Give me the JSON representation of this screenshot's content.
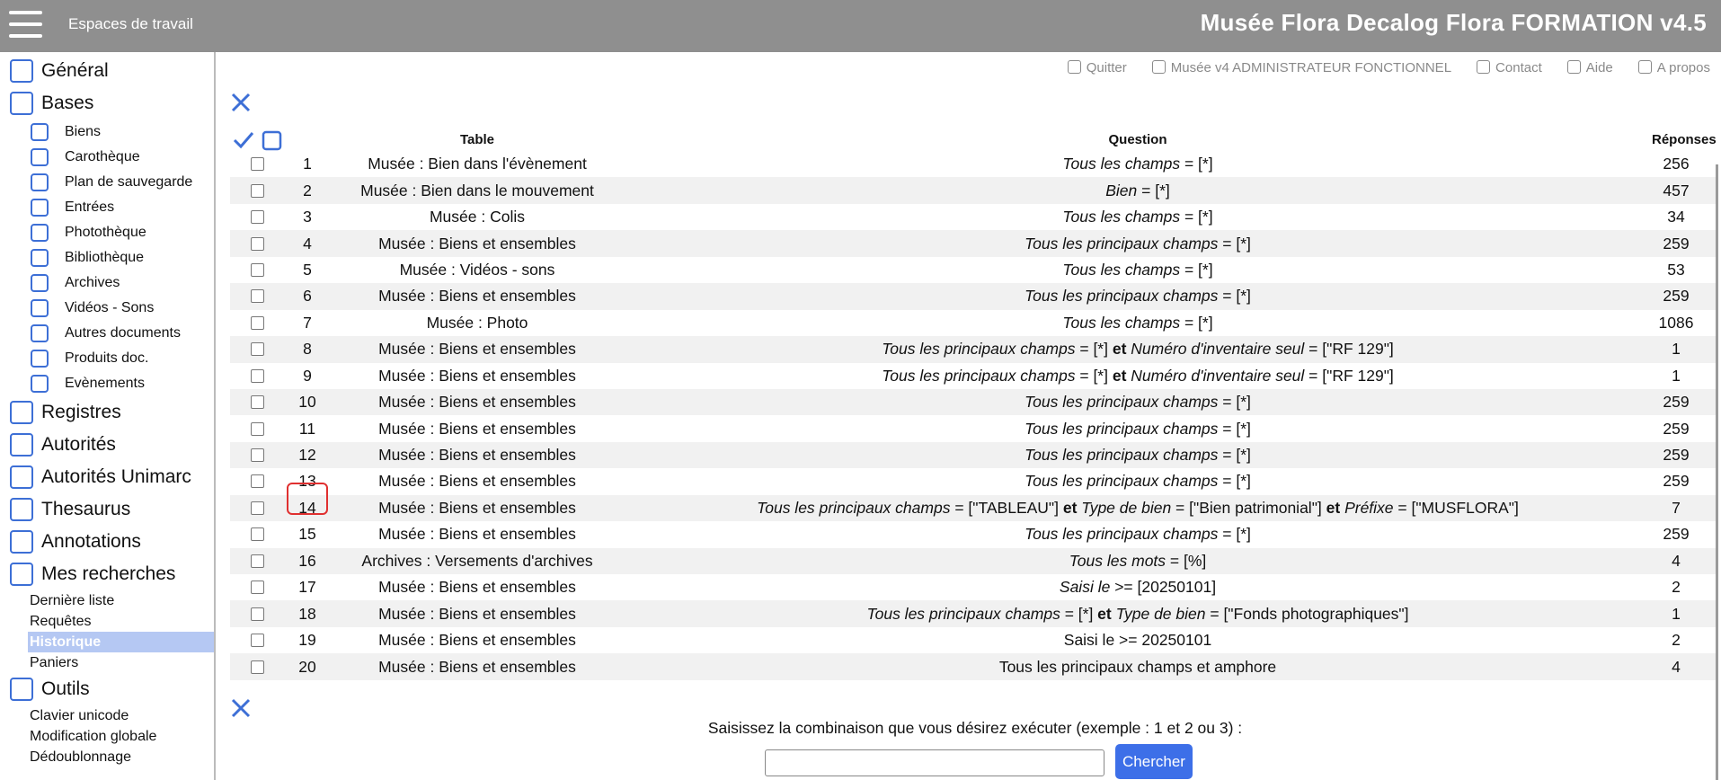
{
  "header": {
    "workspaces": "Espaces de travail",
    "title": "Musée Flora Decalog Flora FORMATION v4.5"
  },
  "sidebar": [
    {
      "label": "Général"
    },
    {
      "label": "Bases",
      "items": [
        {
          "label": "Biens"
        },
        {
          "label": "Carothèque"
        },
        {
          "label": "Plan de sauvegarde"
        },
        {
          "label": "Entrées"
        },
        {
          "label": "Photothèque"
        },
        {
          "label": "Bibliothèque"
        },
        {
          "label": "Archives"
        },
        {
          "label": "Vidéos - Sons"
        },
        {
          "label": "Autres documents"
        },
        {
          "label": "Produits doc."
        },
        {
          "label": "Evènements"
        }
      ]
    },
    {
      "label": "Registres"
    },
    {
      "label": "Autorités"
    },
    {
      "label": "Autorités Unimarc"
    },
    {
      "label": "Thesaurus"
    },
    {
      "label": "Annotations"
    },
    {
      "label": "Mes recherches",
      "items": [
        {
          "label": "Dernière liste"
        },
        {
          "label": "Requêtes"
        },
        {
          "label": "Historique",
          "selected": true
        },
        {
          "label": "Paniers"
        }
      ]
    },
    {
      "label": "Outils",
      "items": [
        {
          "label": "Clavier unicode"
        },
        {
          "label": "Modification globale"
        },
        {
          "label": "Dédoublonnage"
        }
      ]
    }
  ],
  "top_links": [
    "Quitter",
    "Musée v4 ADMINISTRATEUR FONCTIONNEL",
    "Contact",
    "Aide",
    "A propos"
  ],
  "table": {
    "headers": [
      "Table",
      "Question",
      "Réponses"
    ],
    "rows": [
      {
        "number": 1,
        "table": "Musée : Bien dans l'évènement",
        "question": [
          {
            "text": "Tous les champs",
            "style": "italic"
          },
          {
            "text": " = [*]"
          }
        ],
        "responses": 256
      },
      {
        "number": 2,
        "table": "Musée : Bien dans le mouvement",
        "question": [
          {
            "text": "Bien",
            "style": "italic"
          },
          {
            "text": " = [*]"
          }
        ],
        "responses": 457
      },
      {
        "number": 3,
        "table": "Musée : Colis",
        "question": [
          {
            "text": "Tous les champs",
            "style": "italic"
          },
          {
            "text": " = [*]"
          }
        ],
        "responses": 34
      },
      {
        "number": 4,
        "table": "Musée : Biens et ensembles",
        "question": [
          {
            "text": "Tous les principaux champs",
            "style": "italic"
          },
          {
            "text": " = [*]"
          }
        ],
        "responses": 259
      },
      {
        "number": 5,
        "table": "Musée : Vidéos - sons",
        "question": [
          {
            "text": "Tous les champs",
            "style": "italic"
          },
          {
            "text": " = [*]"
          }
        ],
        "responses": 53
      },
      {
        "number": 6,
        "table": "Musée : Biens et ensembles",
        "question": [
          {
            "text": "Tous les principaux champs",
            "style": "italic"
          },
          {
            "text": " = [*]"
          }
        ],
        "responses": 259
      },
      {
        "number": 7,
        "table": "Musée : Photo",
        "question": [
          {
            "text": "Tous les champs",
            "style": "italic"
          },
          {
            "text": " = [*]"
          }
        ],
        "responses": 1086
      },
      {
        "number": 8,
        "table": "Musée : Biens et ensembles",
        "question": [
          {
            "text": "Tous les principaux champs",
            "style": "italic"
          },
          {
            "text": " = [*] "
          },
          {
            "text": "et",
            "style": "bold"
          },
          {
            "text": " "
          },
          {
            "text": "Numéro d'inventaire seul",
            "style": "italic"
          },
          {
            "text": " = [\"RF 129\"]"
          }
        ],
        "responses": 1
      },
      {
        "number": 9,
        "table": "Musée : Biens et ensembles",
        "question": [
          {
            "text": "Tous les principaux champs",
            "style": "italic"
          },
          {
            "text": " = [*] "
          },
          {
            "text": "et",
            "style": "bold"
          },
          {
            "text": " "
          },
          {
            "text": "Numéro d'inventaire seul",
            "style": "italic"
          },
          {
            "text": " = [\"RF 129\"]"
          }
        ],
        "responses": 1
      },
      {
        "number": 10,
        "table": "Musée : Biens et ensembles",
        "question": [
          {
            "text": "Tous les principaux champs",
            "style": "italic"
          },
          {
            "text": " = [*]"
          }
        ],
        "responses": 259
      },
      {
        "number": 11,
        "table": "Musée : Biens et ensembles",
        "question": [
          {
            "text": "Tous les principaux champs",
            "style": "italic"
          },
          {
            "text": " = [*]"
          }
        ],
        "responses": 259
      },
      {
        "number": 12,
        "table": "Musée : Biens et ensembles",
        "question": [
          {
            "text": "Tous les principaux champs",
            "style": "italic"
          },
          {
            "text": " = [*]"
          }
        ],
        "responses": 259
      },
      {
        "number": 13,
        "table": "Musée : Biens et ensembles",
        "question": [
          {
            "text": "Tous les principaux champs",
            "style": "italic"
          },
          {
            "text": " = [*]"
          }
        ],
        "responses": 259
      },
      {
        "number": 14,
        "highlighted": true,
        "table": "Musée : Biens et ensembles",
        "question": [
          {
            "text": "Tous les principaux champs",
            "style": "italic"
          },
          {
            "text": " = [\"TABLEAU\"] "
          },
          {
            "text": "et",
            "style": "bold"
          },
          {
            "text": " "
          },
          {
            "text": "Type de bien",
            "style": "italic"
          },
          {
            "text": " = [\"Bien patrimonial\"] "
          },
          {
            "text": "et",
            "style": "bold"
          },
          {
            "text": " "
          },
          {
            "text": "Préfixe",
            "style": "italic"
          },
          {
            "text": " = [\"MUSFLORA\"]"
          }
        ],
        "responses": 7
      },
      {
        "number": 15,
        "table": "Musée : Biens et ensembles",
        "question": [
          {
            "text": "Tous les principaux champs",
            "style": "italic"
          },
          {
            "text": " = [*]"
          }
        ],
        "responses": 259
      },
      {
        "number": 16,
        "table": "Archives : Versements d'archives",
        "question": [
          {
            "text": "Tous les mots",
            "style": "italic"
          },
          {
            "text": " = [%]"
          }
        ],
        "responses": 4
      },
      {
        "number": 17,
        "table": "Musée : Biens et ensembles",
        "question": [
          {
            "text": "Saisi le",
            "style": "italic"
          },
          {
            "text": " >= [20250101]"
          }
        ],
        "responses": 2
      },
      {
        "number": 18,
        "table": "Musée : Biens et ensembles",
        "question": [
          {
            "text": "Tous les principaux champs",
            "style": "italic"
          },
          {
            "text": " = [*] "
          },
          {
            "text": "et",
            "style": "bold"
          },
          {
            "text": " "
          },
          {
            "text": "Type de bien",
            "style": "italic"
          },
          {
            "text": " = [\"Fonds photographiques\"]"
          }
        ],
        "responses": 1
      },
      {
        "number": 19,
        "table": "Musée : Biens et ensembles",
        "question": [
          {
            "text": "Saisi le >= 20250101"
          }
        ],
        "responses": 2
      },
      {
        "number": 20,
        "table": "Musée : Biens et ensembles",
        "question": [
          {
            "text": "Tous les principaux champs et amphore"
          }
        ],
        "responses": 4
      }
    ]
  },
  "prompt": "Saisissez la combinaison que vous désirez exécuter (exemple : 1 et 2 ou 3) :",
  "button": "Chercher"
}
